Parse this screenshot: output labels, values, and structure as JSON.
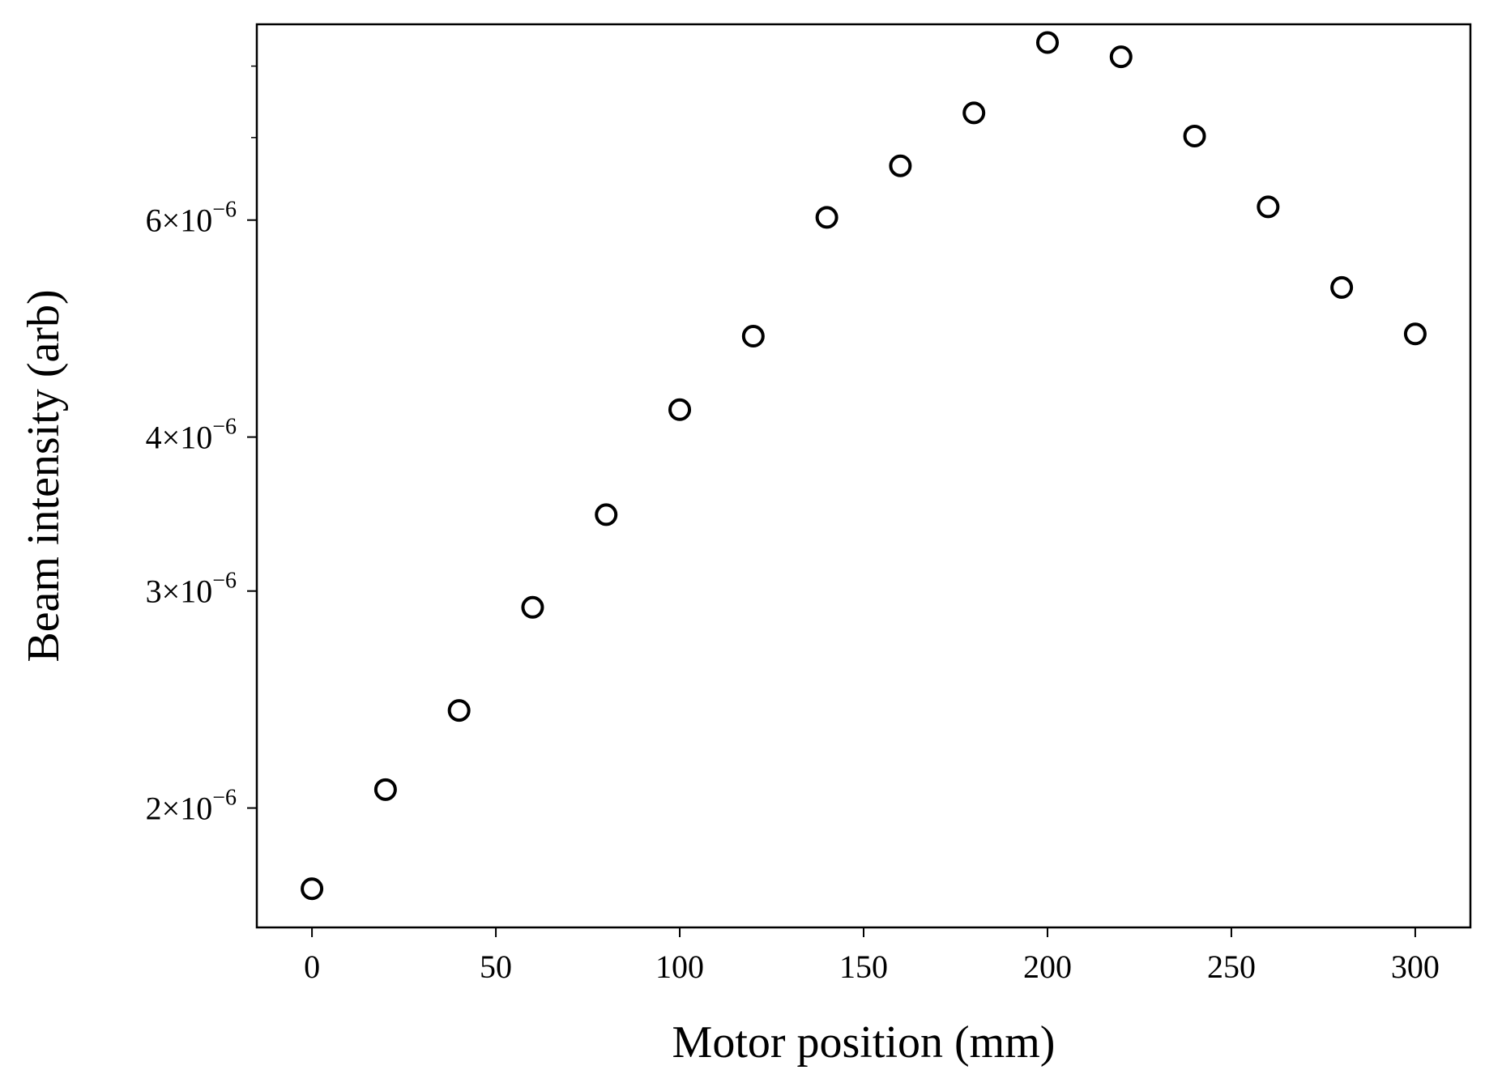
{
  "chart_data": {
    "type": "scatter",
    "title": "",
    "xlabel": "Motor position (mm)",
    "ylabel": "Beam intensity (arb)",
    "x_scale": "linear",
    "y_scale": "log",
    "xlim": [
      -15,
      315
    ],
    "ylim": [
      1.6e-06,
      8.65e-06
    ],
    "x_ticks": [
      0,
      50,
      100,
      150,
      200,
      250,
      300
    ],
    "x_tick_labels": [
      "0",
      "50",
      "100",
      "150",
      "200",
      "250",
      "300"
    ],
    "y_ticks": [
      {
        "value": 2e-06,
        "mantissa": "2",
        "base": "×10",
        "exponent": "−6"
      },
      {
        "value": 3e-06,
        "mantissa": "3",
        "base": "×10",
        "exponent": "−6"
      },
      {
        "value": 4e-06,
        "mantissa": "4",
        "base": "×10",
        "exponent": "−6"
      },
      {
        "value": 6e-06,
        "mantissa": "6",
        "base": "×10",
        "exponent": "−6"
      }
    ],
    "y_minor_ticks": [
      7e-06,
      8e-06
    ],
    "grid": false,
    "legend": "none",
    "marker": "open-circle",
    "marker_color": "#000000",
    "series": [
      {
        "x": [
          0,
          20,
          40,
          60,
          80,
          100,
          120,
          140,
          160,
          180,
          200,
          220,
          240,
          260,
          280,
          300
        ],
        "y": [
          1.72e-06,
          2.07e-06,
          2.4e-06,
          2.91e-06,
          3.46e-06,
          4.21e-06,
          4.83e-06,
          6.03e-06,
          6.64e-06,
          7.33e-06,
          8.36e-06,
          8.14e-06,
          7.02e-06,
          6.15e-06,
          5.29e-06,
          4.85e-06
        ]
      }
    ]
  }
}
